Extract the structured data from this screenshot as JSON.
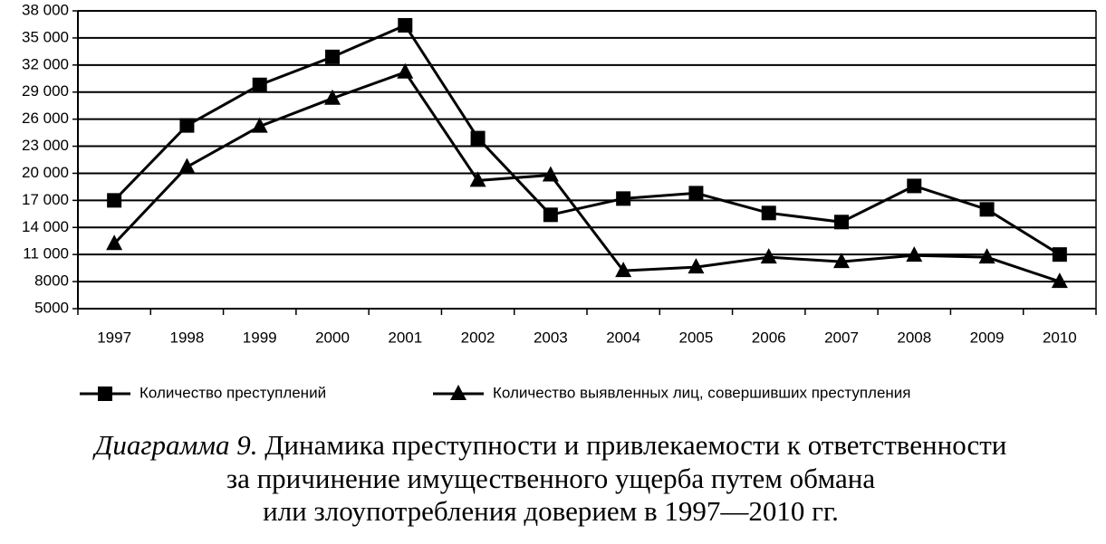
{
  "chart_data": {
    "type": "line",
    "categories": [
      "1997",
      "1998",
      "1999",
      "2000",
      "2001",
      "2002",
      "2003",
      "2004",
      "2005",
      "2006",
      "2007",
      "2008",
      "2009",
      "2010"
    ],
    "series": [
      {
        "name": "Количество преступлений",
        "color": "#000000",
        "marker": "square",
        "values": [
          17000,
          25300,
          29800,
          32900,
          36400,
          23900,
          15400,
          17200,
          17800,
          15600,
          14600,
          18600,
          16000,
          11000
        ]
      },
      {
        "name": "Количество выявленных лиц, совершивших преступления",
        "color": "#000000",
        "marker": "triangle",
        "values": [
          12200,
          20700,
          25200,
          28300,
          31200,
          19200,
          19800,
          9200,
          9600,
          10700,
          10200,
          10900,
          10700,
          8000
        ]
      }
    ],
    "ylim": [
      5000,
      38000
    ],
    "yticks": [
      5000,
      8000,
      {
        "value": 11000,
        "label": "11 000"
      },
      {
        "value": 14000,
        "label": "14 000"
      },
      {
        "value": 17000,
        "label": "17 000"
      },
      {
        "value": 20000,
        "label": "20 000"
      },
      {
        "value": 23000,
        "label": "23 000"
      },
      {
        "value": 26000,
        "label": "26 000"
      },
      {
        "value": 29000,
        "label": "29 000"
      },
      {
        "value": 32000,
        "label": "32 000"
      },
      {
        "value": 35000,
        "label": "35 000"
      },
      {
        "value": 38000,
        "label": "38 000"
      }
    ],
    "grid": true,
    "legend": "bottom",
    "caption": {
      "label": "Диаграмма 9.",
      "lines": [
        "Динамика преступности и привлекаемости к ответственности",
        "за причинение имущественного ущерба путем обмана",
        "или злоупотребления доверием в 1997—2010 гг."
      ]
    }
  }
}
